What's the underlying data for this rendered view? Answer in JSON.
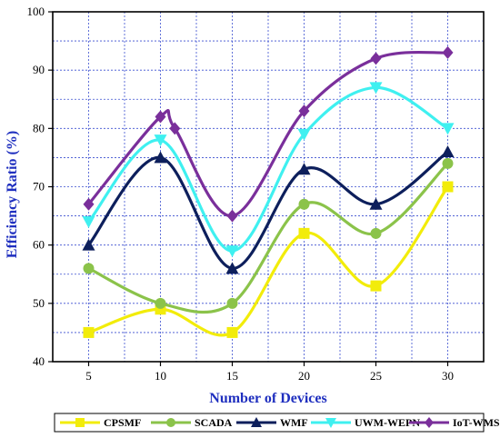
{
  "chart_data": {
    "type": "line",
    "xlabel": "Number of Devices",
    "ylabel": "Efficiency Ratio (%)",
    "x": [
      5,
      10,
      15,
      20,
      25,
      30
    ],
    "x_ticks": [
      "5",
      "10",
      "15",
      "20",
      "25",
      "30"
    ],
    "y_ticks": [
      "40",
      "50",
      "60",
      "70",
      "80",
      "90",
      "100"
    ],
    "xlim": [
      2.5,
      32.5
    ],
    "ylim": [
      40,
      100
    ],
    "grid": true,
    "legend_position": "bottom",
    "series": [
      {
        "name": "CPSMF",
        "color": "#f2ec0a",
        "marker": "square",
        "x": [
          5,
          10,
          15,
          20,
          25,
          30
        ],
        "values": [
          45,
          49,
          45,
          62,
          53,
          70
        ]
      },
      {
        "name": "SCADA",
        "color": "#8bc34a",
        "marker": "circle",
        "x": [
          5,
          10,
          15,
          20,
          25,
          30
        ],
        "values": [
          56,
          50,
          50,
          67,
          62,
          74
        ]
      },
      {
        "name": "WMF",
        "color": "#0d1f5c",
        "marker": "triangle",
        "x": [
          5,
          10,
          15,
          20,
          25,
          30
        ],
        "values": [
          60,
          75,
          56,
          73,
          67,
          76
        ]
      },
      {
        "name": "UWM-WEPN",
        "color": "#3ff0f0",
        "marker": "triangle-down",
        "x": [
          5,
          10,
          15,
          20,
          25,
          30
        ],
        "values": [
          64,
          78,
          59,
          79,
          87,
          80
        ]
      },
      {
        "name": "IoT-WMS",
        "color": "#7a2f9b",
        "marker": "diamond",
        "x": [
          5,
          10,
          11,
          15,
          20,
          25,
          30
        ],
        "values": [
          67,
          82,
          80,
          65,
          83,
          92,
          93
        ]
      }
    ]
  }
}
